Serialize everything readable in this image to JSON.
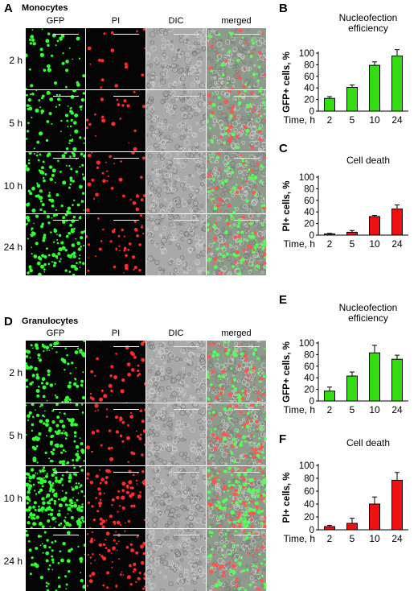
{
  "figure": {
    "panel_letters": {
      "A": "A",
      "B": "B",
      "C": "C",
      "D": "D",
      "E": "E",
      "F": "F"
    },
    "section_a_title": "Monocytes",
    "section_d_title": "Granulocytes",
    "columns": [
      "GFP",
      "PI",
      "DIC",
      "merged"
    ],
    "rows": [
      "2 h",
      "5 h",
      "10 h",
      "24 h"
    ]
  },
  "chart_data": [
    {
      "id": "B",
      "type": "bar",
      "title": "Nucleofection efficiency",
      "title_lines": [
        "Nucleofection",
        "efficiency"
      ],
      "xlabel": "Time, h",
      "ylabel": "GFP+ cells, %",
      "categories": [
        "2",
        "5",
        "10",
        "24"
      ],
      "values": [
        22,
        41,
        79,
        95
      ],
      "errors": [
        3,
        4,
        6,
        11
      ],
      "ylim": [
        0,
        100
      ],
      "yticks": [
        0,
        20,
        40,
        60,
        80,
        100
      ],
      "color": "#33dd11"
    },
    {
      "id": "C",
      "type": "bar",
      "title": "Cell death",
      "title_lines": [
        "Cell death"
      ],
      "xlabel": "Time, h",
      "ylabel": "PI+ cells, %",
      "categories": [
        "2",
        "5",
        "10",
        "24"
      ],
      "values": [
        2,
        5,
        32,
        45
      ],
      "errors": [
        1,
        3,
        2,
        7
      ],
      "ylim": [
        0,
        100
      ],
      "yticks": [
        0,
        20,
        40,
        60,
        80,
        100
      ],
      "color": "#ee1111"
    },
    {
      "id": "E",
      "type": "bar",
      "title": "Nucleofection efficiency",
      "title_lines": [
        "Nucleofection",
        "efficiency"
      ],
      "xlabel": "Time, h",
      "ylabel": "GFP+ cells, %",
      "categories": [
        "2",
        "5",
        "10",
        "24"
      ],
      "values": [
        17,
        43,
        83,
        72
      ],
      "errors": [
        7,
        7,
        13,
        7
      ],
      "ylim": [
        0,
        100
      ],
      "yticks": [
        0,
        20,
        40,
        60,
        80,
        100
      ],
      "color": "#33dd11"
    },
    {
      "id": "F",
      "type": "bar",
      "title": "Cell death",
      "title_lines": [
        "Cell death"
      ],
      "xlabel": "Time, h",
      "ylabel": "PI+ cells, %",
      "categories": [
        "2",
        "5",
        "10",
        "24"
      ],
      "values": [
        5,
        10,
        40,
        77
      ],
      "errors": [
        2,
        8,
        11,
        12
      ],
      "ylim": [
        0,
        100
      ],
      "yticks": [
        0,
        20,
        40,
        60,
        80,
        100
      ],
      "color": "#ee1111"
    }
  ]
}
